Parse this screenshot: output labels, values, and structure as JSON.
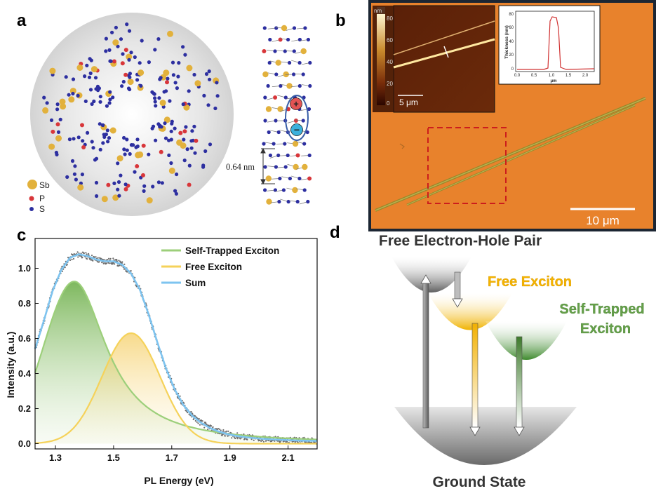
{
  "panels": {
    "a": {
      "letter": "a",
      "legend": [
        {
          "label": "Sb",
          "color": "#e2b13c"
        },
        {
          "label": "P",
          "color": "#d8363a"
        },
        {
          "label": "S",
          "color": "#2d2fa0"
        }
      ],
      "spacing_label": "0.64 nm",
      "hole_symbol": "+",
      "electron_symbol": "−"
    },
    "b": {
      "letter": "b",
      "afm_colorbar_unit": "nm",
      "afm_colorbar_ticks": [
        "80",
        "60",
        "40",
        "20",
        "0"
      ],
      "afm_scale_bar": "5 μm",
      "profile_ylabel": "Thickness (nm)",
      "profile_xlabel": "μm",
      "profile_yticks": [
        "80",
        "60",
        "40",
        "20",
        "0"
      ],
      "profile_xticks": [
        "0.0",
        "0.5",
        "1.0",
        "1.5",
        "2.0"
      ],
      "scale_bar": "10 μm"
    },
    "c": {
      "letter": "c"
    },
    "d": {
      "letter": "d",
      "free_pair": "Free Electron-Hole Pair",
      "free_exciton": "Free Exciton",
      "ste_line1": "Self-Trapped",
      "ste_line2": "Exciton",
      "ground": "Ground State",
      "colors": {
        "free_exciton": "#f5b400",
        "ste": "#66a04a"
      }
    }
  },
  "chart_data": {
    "type": "line",
    "xlabel": "PL Energy (eV)",
    "ylabel": "Intensity (a.u.)",
    "xlim": [
      1.23,
      2.2
    ],
    "ylim": [
      -0.03,
      1.17
    ],
    "xticks": [
      "1.3",
      "1.5",
      "1.7",
      "1.9",
      "2.1"
    ],
    "yticks": [
      "0.0",
      "0.2",
      "0.4",
      "0.6",
      "0.8",
      "1.0"
    ],
    "series": [
      {
        "name": "Self-Trapped Exciton",
        "color": "#9ccf7a",
        "peak_x": 1.365,
        "peak_y": 0.925
      },
      {
        "name": "Free Exciton",
        "color": "#f5d25a",
        "peak_x": 1.56,
        "peak_y": 0.63
      },
      {
        "name": "Sum",
        "color": "#7ec4f0"
      }
    ],
    "sum_points": {
      "x": [
        1.23,
        1.26,
        1.29,
        1.32,
        1.35,
        1.38,
        1.41,
        1.44,
        1.47,
        1.5,
        1.53,
        1.56,
        1.59,
        1.62,
        1.65,
        1.68,
        1.71,
        1.74,
        1.77,
        1.8,
        1.83,
        1.86,
        1.89,
        1.92,
        1.95,
        1.98,
        2.01,
        2.04,
        2.07,
        2.1,
        2.13,
        2.16,
        2.2
      ],
      "y": [
        0.54,
        0.7,
        0.87,
        0.99,
        1.06,
        1.08,
        1.07,
        1.05,
        1.04,
        1.04,
        1.02,
        0.97,
        0.88,
        0.74,
        0.58,
        0.43,
        0.31,
        0.22,
        0.16,
        0.12,
        0.09,
        0.07,
        0.055,
        0.045,
        0.038,
        0.032,
        0.028,
        0.025,
        0.022,
        0.02,
        0.018,
        0.017,
        0.016
      ]
    },
    "raw_data_color": "#6e6e6e",
    "legend_position": "top-right"
  }
}
